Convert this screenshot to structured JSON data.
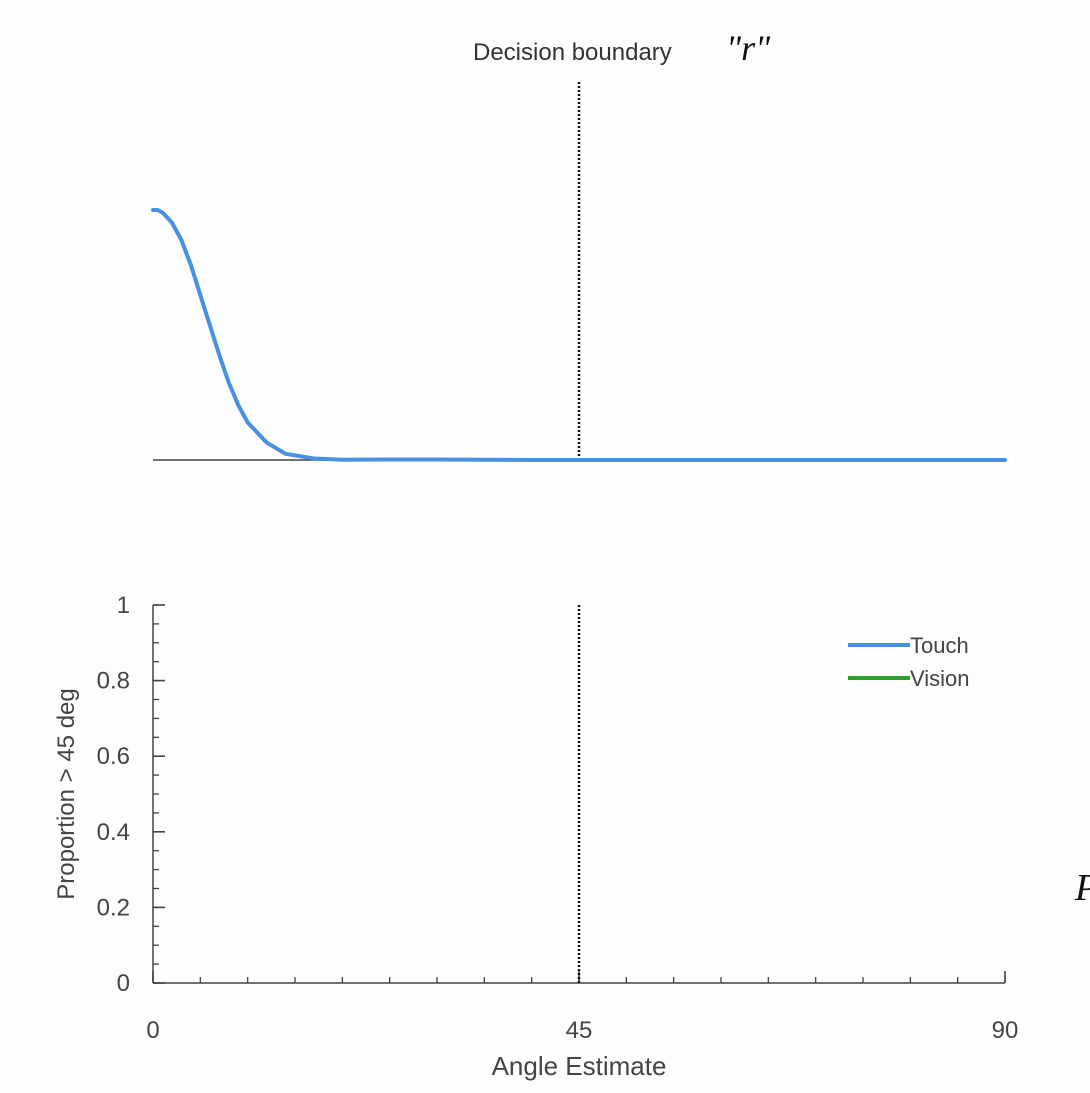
{
  "chart_data": [
    {
      "type": "line",
      "annotation": {
        "label": "Decision boundary",
        "symbol": "\"r\"",
        "x": 45
      },
      "xlim": [
        0,
        90
      ],
      "series": [
        {
          "name": "Touch",
          "color": "#4a90e2",
          "x": [
            0,
            0.5,
            1,
            2,
            3,
            4,
            5,
            6,
            7,
            8,
            9,
            10,
            12,
            14,
            17,
            20,
            25,
            30,
            35,
            40,
            45,
            50,
            60,
            70,
            80,
            90
          ],
          "y": [
            1.0,
            1.0,
            0.99,
            0.95,
            0.88,
            0.78,
            0.66,
            0.54,
            0.42,
            0.31,
            0.22,
            0.15,
            0.07,
            0.025,
            0.006,
            0.001,
            0.002,
            0.002,
            0.001,
            0,
            0,
            0,
            0,
            0,
            0,
            0
          ]
        }
      ]
    },
    {
      "type": "line",
      "xlabel": "Angle Estimate",
      "ylabel": "Proportion > 45 deg",
      "xlim": [
        0,
        90
      ],
      "ylim": [
        0,
        1
      ],
      "xticks": [
        0,
        45,
        90
      ],
      "xticklabels": [
        "0",
        "45",
        "90"
      ],
      "yticks": [
        0,
        0.2,
        0.4,
        0.6,
        0.8,
        1
      ],
      "yticklabels": [
        "0",
        "0.2",
        "0.4",
        "0.6",
        "0.8",
        "1"
      ],
      "vline": 45,
      "legend": {
        "placement": "top-right",
        "entries": [
          {
            "name": "Touch",
            "color": "#4a90e2"
          },
          {
            "name": "Vision",
            "color": "#2fa02f"
          }
        ]
      },
      "series": []
    }
  ],
  "edge_glyph": "P"
}
